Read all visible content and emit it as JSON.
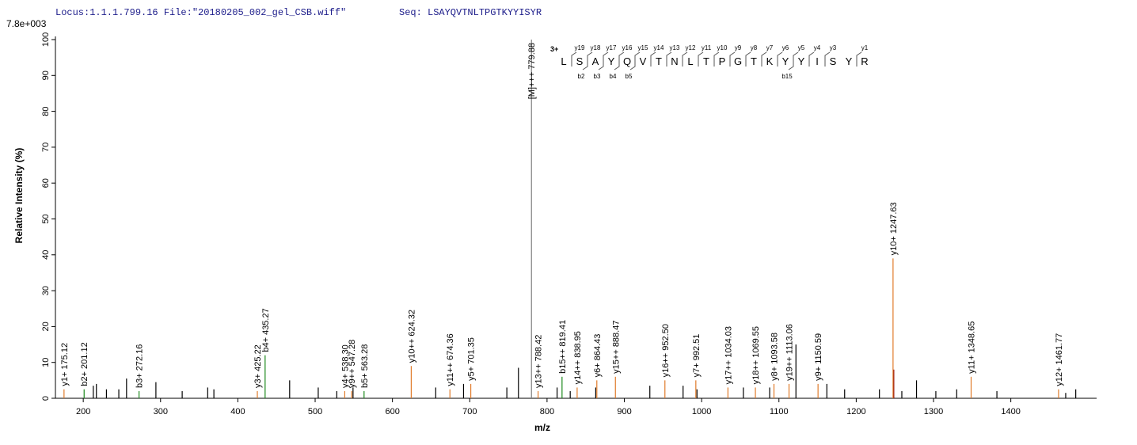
{
  "chart_data": {
    "type": "spectrum",
    "header_left": "Locus:1.1.1.799.16 File:\"20180205_002_gel_CSB.wiff\"",
    "header_right": "Seq: LSAYQVTNLTPGTKYYISYR",
    "scale_label": "7.8e+003",
    "xlabel": "m/z",
    "ylabel": "Relative   Intensity (%)",
    "xlim": [
      164,
      1511
    ],
    "ylim": [
      0,
      100
    ],
    "xticks": [
      200,
      300,
      400,
      500,
      600,
      700,
      800,
      900,
      1000,
      1100,
      1200,
      1300,
      1400
    ],
    "yticks": [
      0,
      10,
      20,
      30,
      40,
      50,
      60,
      70,
      80,
      90,
      100
    ],
    "peaks": [
      {
        "x": 213,
        "y": 3.5,
        "color": "#000000"
      },
      {
        "x": 217,
        "y": 4,
        "color": "#000000"
      },
      {
        "x": 230,
        "y": 2.5,
        "color": "#000000"
      },
      {
        "x": 246,
        "y": 2.5,
        "color": "#000000"
      },
      {
        "x": 256,
        "y": 5.5,
        "color": "#000000"
      },
      {
        "x": 294,
        "y": 4.5,
        "color": "#000000"
      },
      {
        "x": 328,
        "y": 2,
        "color": "#000000"
      },
      {
        "x": 361,
        "y": 3,
        "color": "#000000"
      },
      {
        "x": 369,
        "y": 2.5,
        "color": "#000000"
      },
      {
        "x": 467,
        "y": 5,
        "color": "#000000"
      },
      {
        "x": 504,
        "y": 3,
        "color": "#000000"
      },
      {
        "x": 528,
        "y": 2,
        "color": "#000000"
      },
      {
        "x": 549,
        "y": 3,
        "color": "#000000"
      },
      {
        "x": 656,
        "y": 3,
        "color": "#000000"
      },
      {
        "x": 692,
        "y": 4,
        "color": "#000000"
      },
      {
        "x": 748,
        "y": 3,
        "color": "#000000"
      },
      {
        "x": 763,
        "y": 8.5,
        "color": "#000000"
      },
      {
        "x": 813,
        "y": 3,
        "color": "#000000"
      },
      {
        "x": 830,
        "y": 2,
        "color": "#000000"
      },
      {
        "x": 863,
        "y": 3,
        "color": "#000000"
      },
      {
        "x": 933,
        "y": 3.5,
        "color": "#000000"
      },
      {
        "x": 976,
        "y": 3.5,
        "color": "#000000"
      },
      {
        "x": 994,
        "y": 2.5,
        "color": "#000000"
      },
      {
        "x": 1054,
        "y": 3,
        "color": "#000000"
      },
      {
        "x": 1088,
        "y": 3,
        "color": "#000000"
      },
      {
        "x": 1122,
        "y": 15,
        "color": "#000000"
      },
      {
        "x": 1162,
        "y": 4,
        "color": "#000000"
      },
      {
        "x": 1185,
        "y": 2.5,
        "color": "#000000"
      },
      {
        "x": 1230,
        "y": 2.5,
        "color": "#000000"
      },
      {
        "x": 1248.6,
        "y": 8,
        "color": "#8b0000"
      },
      {
        "x": 1259,
        "y": 2,
        "color": "#000000"
      },
      {
        "x": 1278,
        "y": 5,
        "color": "#000000"
      },
      {
        "x": 1303,
        "y": 2,
        "color": "#000000"
      },
      {
        "x": 1330,
        "y": 2.5,
        "color": "#000000"
      },
      {
        "x": 1382,
        "y": 2,
        "color": "#000000"
      },
      {
        "x": 1471,
        "y": 1.5,
        "color": "#000000"
      },
      {
        "x": 1484,
        "y": 2.5,
        "color": "#000000"
      }
    ],
    "annotated_peaks": [
      {
        "x": 175.12,
        "y": 2.5,
        "label": "y1+ 175.12",
        "color": "#e07b2a"
      },
      {
        "x": 201.12,
        "y": 2.5,
        "label": "b2+ 201.12",
        "color": "#1e8a1e"
      },
      {
        "x": 272.16,
        "y": 2,
        "label": "b3+ 272.16",
        "color": "#1e8a1e"
      },
      {
        "x": 425.22,
        "y": 2,
        "label": "y3+ 425.22",
        "color": "#e07b2a"
      },
      {
        "x": 435.27,
        "y": 12,
        "label": "b4+ 435.27",
        "color": "#1e8a1e"
      },
      {
        "x": 538.3,
        "y": 2,
        "label": "y4+ 538.30",
        "color": "#e07b2a"
      },
      {
        "x": 547.28,
        "y": 2,
        "label": "y9++ 547.28",
        "color": "#e07b2a"
      },
      {
        "x": 563.28,
        "y": 2,
        "label": "b5+ 563.28",
        "color": "#1e8a1e"
      },
      {
        "x": 624.32,
        "y": 9,
        "label": "y10++ 624.32",
        "color": "#e07b2a"
      },
      {
        "x": 674.36,
        "y": 2.5,
        "label": "y11++ 674.36",
        "color": "#e07b2a"
      },
      {
        "x": 701.35,
        "y": 4,
        "label": "y5+ 701.35",
        "color": "#e07b2a"
      },
      {
        "x": 779.88,
        "y": 100,
        "label": "[M]+++ 779.88",
        "color": "#808080"
      },
      {
        "x": 788.42,
        "y": 2,
        "label": "y13++ 788.42",
        "color": "#e07b2a"
      },
      {
        "x": 819.41,
        "y": 6,
        "label": "b15++ 819.41",
        "color": "#1e8a1e"
      },
      {
        "x": 838.95,
        "y": 3,
        "label": "y14++ 838.95",
        "color": "#e07b2a"
      },
      {
        "x": 864.43,
        "y": 5,
        "label": "y6+ 864.43",
        "color": "#e07b2a"
      },
      {
        "x": 888.47,
        "y": 6,
        "label": "y15++ 888.47",
        "color": "#e07b2a"
      },
      {
        "x": 952.5,
        "y": 5,
        "label": "y16++ 952.50",
        "color": "#e07b2a"
      },
      {
        "x": 992.51,
        "y": 5,
        "label": "y7+ 992.51",
        "color": "#e07b2a"
      },
      {
        "x": 1034.03,
        "y": 3,
        "label": "y17++ 1034.03",
        "color": "#e07b2a"
      },
      {
        "x": 1069.55,
        "y": 3,
        "label": "y18++ 1069.55",
        "color": "#e07b2a"
      },
      {
        "x": 1093.58,
        "y": 4,
        "label": "y8+ 1093.58",
        "color": "#e07b2a"
      },
      {
        "x": 1113.06,
        "y": 4,
        "label": "y19++ 1113.06",
        "color": "#e07b2a"
      },
      {
        "x": 1150.59,
        "y": 4,
        "label": "y9+ 1150.59",
        "color": "#e07b2a"
      },
      {
        "x": 1247.63,
        "y": 39,
        "label": "y10+ 1247.63",
        "color": "#e07b2a"
      },
      {
        "x": 1348.65,
        "y": 6,
        "label": "y11+ 1348.65",
        "color": "#e07b2a"
      },
      {
        "x": 1461.77,
        "y": 2.5,
        "label": "y12+ 1461.77",
        "color": "#e07b2a"
      }
    ],
    "sequence": {
      "charge": "3+",
      "residues": [
        "L",
        "S",
        "A",
        "Y",
        "Q",
        "V",
        "T",
        "N",
        "L",
        "T",
        "P",
        "G",
        "T",
        "K",
        "Y",
        "Y",
        "I",
        "S",
        "Y",
        "R"
      ],
      "y_ions": [
        null,
        "y19",
        "y18",
        "y17",
        "y16",
        "y15",
        "y14",
        "y13",
        "y12",
        "y11",
        "y10",
        "y9",
        "y8",
        "y7",
        "y6",
        "y5",
        "y4",
        "y3",
        null,
        "y1"
      ],
      "b_ions": [
        null,
        "b2",
        "b3",
        "b4",
        "b5",
        null,
        null,
        null,
        null,
        null,
        null,
        null,
        null,
        null,
        "b15",
        null,
        null,
        null,
        null
      ]
    }
  }
}
